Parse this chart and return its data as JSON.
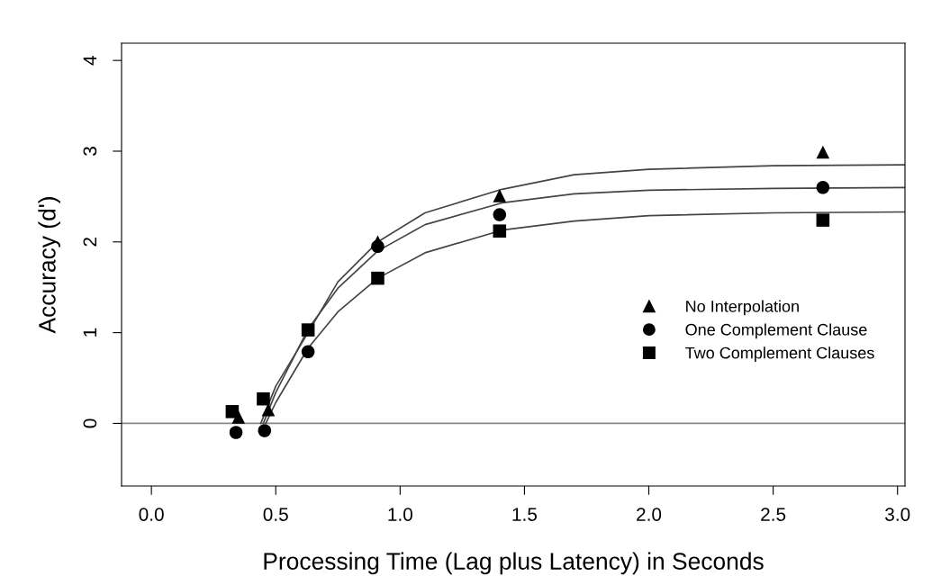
{
  "chart_data": {
    "type": "scatter",
    "xlabel": "Processing Time (Lag plus Latency) in Seconds",
    "ylabel": "Accuracy (d')",
    "xlim": [
      -0.12,
      3.03
    ],
    "ylim": [
      -0.69,
      4.19
    ],
    "xticks": [
      {
        "value": 0,
        "label": "0.0"
      },
      {
        "value": 0.5,
        "label": "0.5"
      },
      {
        "value": 1,
        "label": "1.0"
      },
      {
        "value": 1.5,
        "label": "1.5"
      },
      {
        "value": 2,
        "label": "2.0"
      },
      {
        "value": 2.5,
        "label": "2.5"
      },
      {
        "value": 3,
        "label": "3.0"
      }
    ],
    "yticks": [
      0,
      1,
      2,
      3,
      4
    ],
    "grid": false,
    "legend": "right",
    "ref_lines": [
      {
        "axis": "y",
        "value": 0,
        "color": "#888888"
      }
    ],
    "series": [
      {
        "name": "No Interpolation",
        "color": "#000000",
        "marker": "triangle",
        "x": [
          0.35,
          0.47,
          0.63,
          0.91,
          1.4,
          2.7
        ],
        "values": [
          0.07,
          0.15,
          null,
          2.0,
          2.51,
          2.99
        ]
      },
      {
        "name": "One Complement Clause",
        "color": "#000000",
        "marker": "circle",
        "x": [
          0.34,
          0.455,
          0.63,
          0.91,
          1.4,
          2.7
        ],
        "values": [
          -0.1,
          -0.08,
          0.79,
          1.95,
          2.3,
          2.6
        ]
      },
      {
        "name": "Two Complement Clauses",
        "color": "#000000",
        "marker": "square",
        "x": [
          0.325,
          0.45,
          0.63,
          0.91,
          1.4,
          2.7
        ],
        "values": [
          0.13,
          0.27,
          1.03,
          1.6,
          2.12,
          2.24
        ]
      },
      {
        "type": "line",
        "color": "#444444",
        "x": [
          0.44,
          0.5,
          0.63,
          0.75,
          0.91,
          1.1,
          1.41,
          1.7,
          2.0,
          2.5,
          3.03
        ],
        "values": [
          0,
          0.41,
          1.0,
          1.56,
          2.0,
          2.32,
          2.58,
          2.74,
          2.8,
          2.84,
          2.85
        ]
      },
      {
        "type": "line",
        "color": "#444444",
        "x": [
          0.45,
          0.5,
          0.63,
          0.75,
          0.91,
          1.1,
          1.41,
          1.7,
          2.0,
          2.5,
          3.03
        ],
        "values": [
          0,
          0.34,
          1.04,
          1.49,
          1.9,
          2.19,
          2.43,
          2.53,
          2.57,
          2.59,
          2.6
        ]
      },
      {
        "type": "line",
        "color": "#444444",
        "x": [
          0.46,
          0.5,
          0.63,
          0.75,
          0.91,
          1.1,
          1.41,
          1.7,
          2.0,
          2.5,
          3.03
        ],
        "values": [
          0,
          0.23,
          0.83,
          1.23,
          1.6,
          1.88,
          2.13,
          2.23,
          2.29,
          2.32,
          2.33
        ]
      }
    ]
  }
}
